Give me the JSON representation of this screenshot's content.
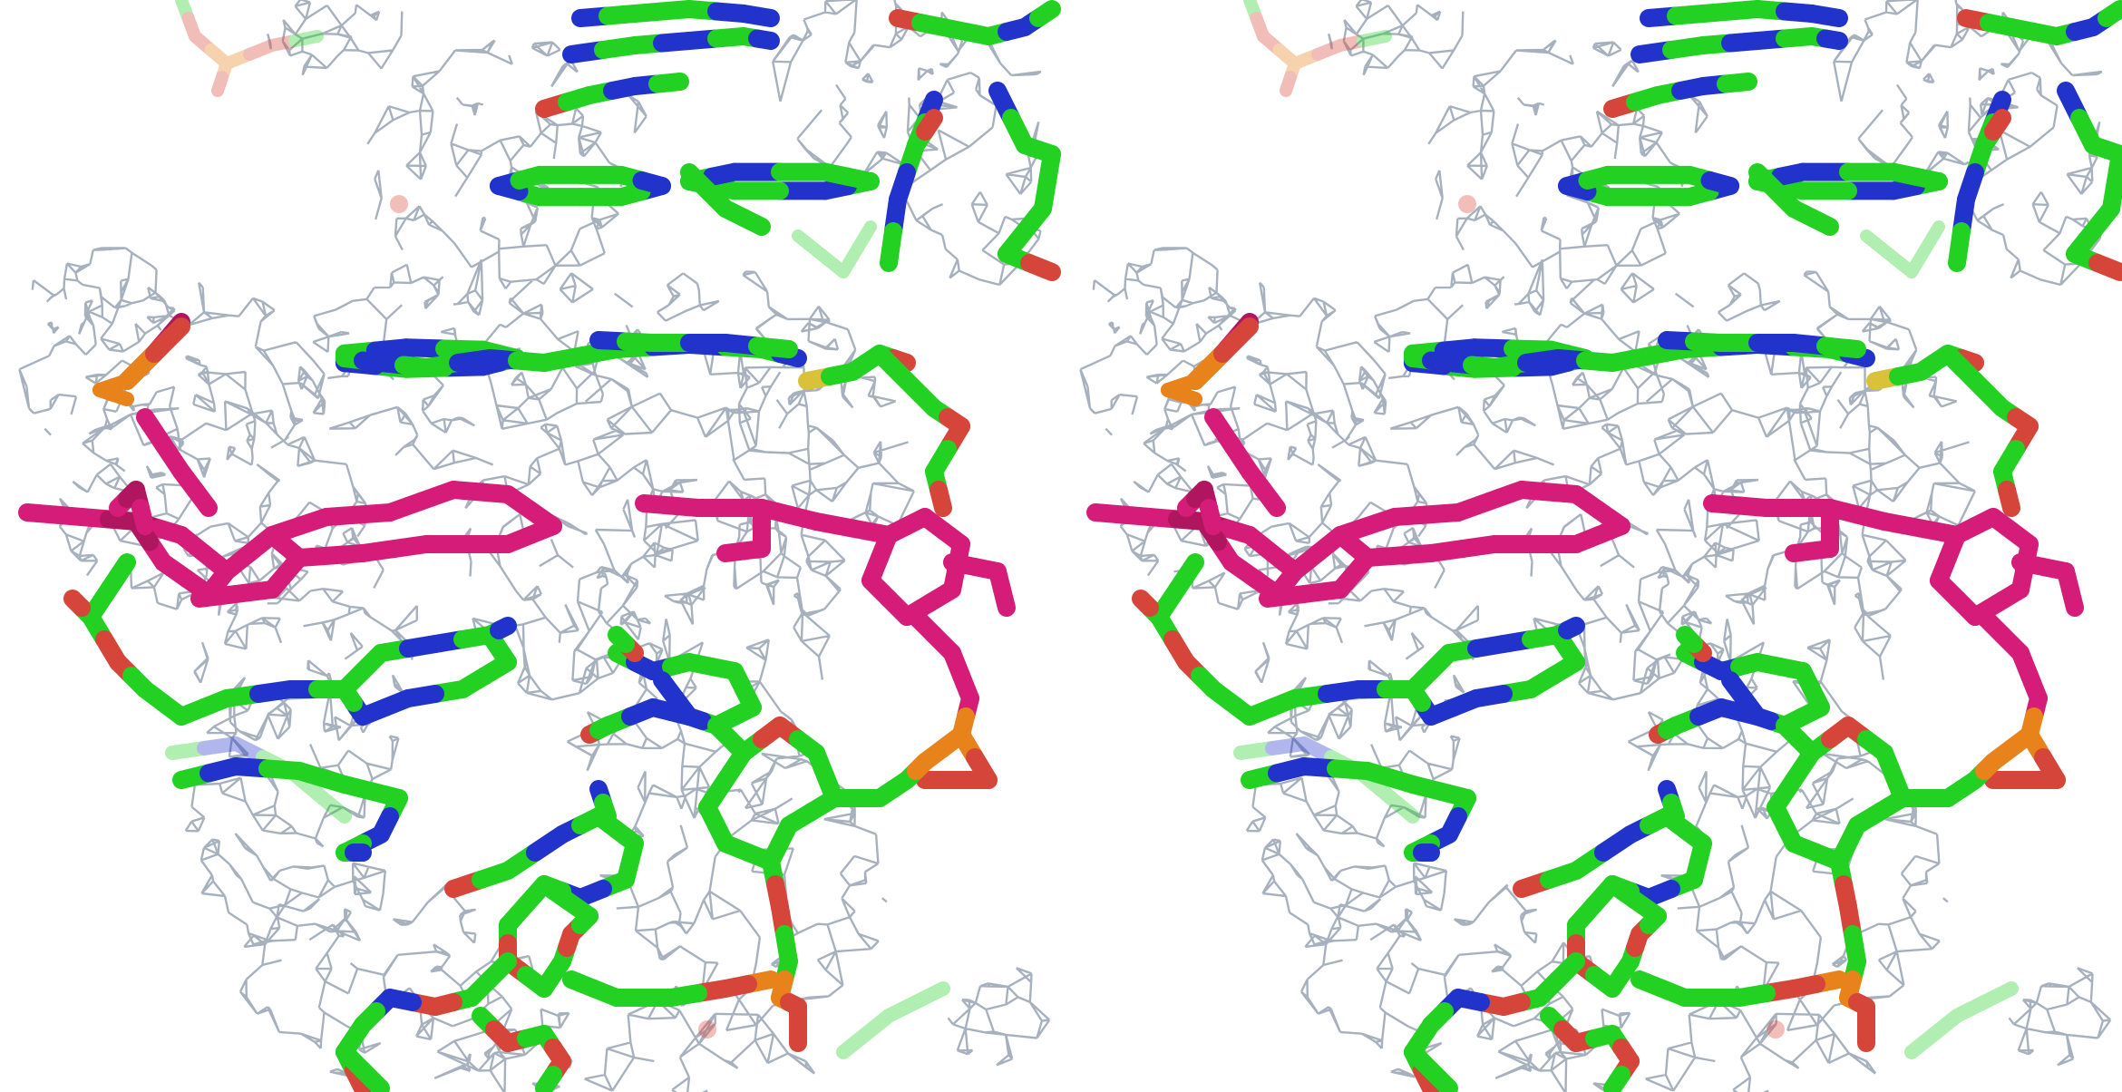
{
  "image": {
    "kind": "stereo-pair",
    "panels": [
      "left-eye",
      "right-eye"
    ]
  },
  "colors": {
    "background": "#ffffff",
    "mesh": "#98a3b3",
    "carbon": "#22d122",
    "nitrogen": "#2233cc",
    "oxygen": "#d6453a",
    "phosphorus": "#e8821a",
    "sulfur": "#d9c23a",
    "ligand": "#d41c78",
    "ligand_dark": "#b0165f"
  }
}
